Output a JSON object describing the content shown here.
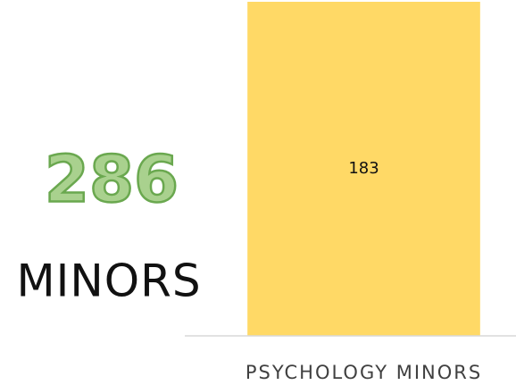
{
  "chart_data": {
    "type": "bar",
    "categories": [
      "PSYCHOLOGY MINORS"
    ],
    "values": [
      183
    ],
    "color": "#ffd966",
    "annotation": {
      "number": 286,
      "text": "MINORS"
    }
  }
}
